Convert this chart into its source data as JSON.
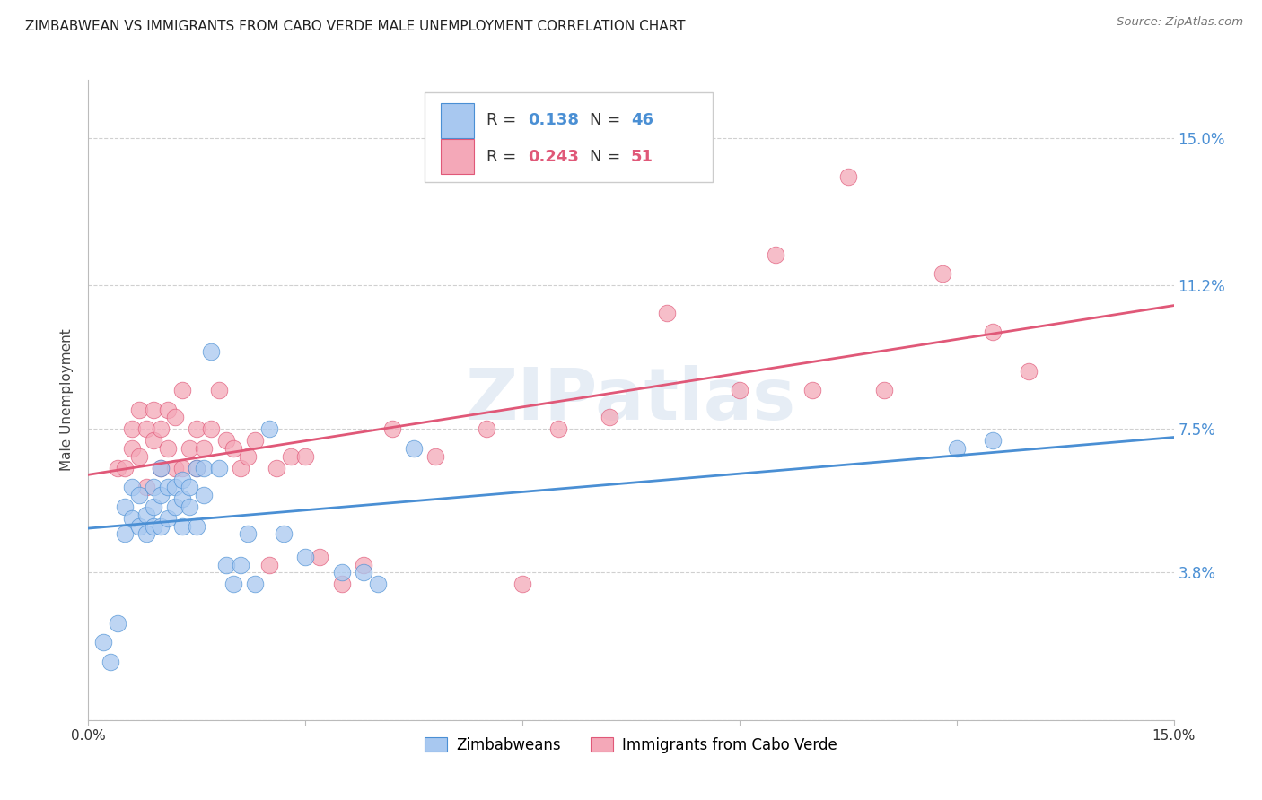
{
  "title": "ZIMBABWEAN VS IMMIGRANTS FROM CABO VERDE MALE UNEMPLOYMENT CORRELATION CHART",
  "source": "Source: ZipAtlas.com",
  "ylabel": "Male Unemployment",
  "yticks": [
    0.0,
    0.038,
    0.075,
    0.112,
    0.15
  ],
  "ytick_labels": [
    "",
    "3.8%",
    "7.5%",
    "11.2%",
    "15.0%"
  ],
  "xlim": [
    0.0,
    0.15
  ],
  "ylim": [
    0.0,
    0.165
  ],
  "background_color": "#ffffff",
  "grid_color": "#d0d0d0",
  "watermark": "ZIPatlas",
  "series1_color": "#a8c8f0",
  "series2_color": "#f4a8b8",
  "line1_color": "#4a8fd4",
  "line2_color": "#e05878",
  "series1_label": "Zimbabweans",
  "series2_label": "Immigrants from Cabo Verde",
  "zimbabwean_x": [
    0.002,
    0.003,
    0.004,
    0.005,
    0.005,
    0.006,
    0.006,
    0.007,
    0.007,
    0.008,
    0.008,
    0.009,
    0.009,
    0.009,
    0.01,
    0.01,
    0.01,
    0.011,
    0.011,
    0.012,
    0.012,
    0.013,
    0.013,
    0.013,
    0.014,
    0.014,
    0.015,
    0.015,
    0.016,
    0.016,
    0.017,
    0.018,
    0.019,
    0.02,
    0.021,
    0.022,
    0.023,
    0.025,
    0.027,
    0.03,
    0.035,
    0.038,
    0.04,
    0.045,
    0.12,
    0.125
  ],
  "zimbabwean_y": [
    0.02,
    0.015,
    0.025,
    0.048,
    0.055,
    0.052,
    0.06,
    0.05,
    0.058,
    0.048,
    0.053,
    0.05,
    0.055,
    0.06,
    0.05,
    0.058,
    0.065,
    0.052,
    0.06,
    0.055,
    0.06,
    0.05,
    0.057,
    0.062,
    0.055,
    0.06,
    0.05,
    0.065,
    0.058,
    0.065,
    0.095,
    0.065,
    0.04,
    0.035,
    0.04,
    0.048,
    0.035,
    0.075,
    0.048,
    0.042,
    0.038,
    0.038,
    0.035,
    0.07,
    0.07,
    0.072
  ],
  "caboverde_x": [
    0.004,
    0.005,
    0.006,
    0.006,
    0.007,
    0.007,
    0.008,
    0.008,
    0.009,
    0.009,
    0.01,
    0.01,
    0.011,
    0.011,
    0.012,
    0.012,
    0.013,
    0.013,
    0.014,
    0.015,
    0.015,
    0.016,
    0.017,
    0.018,
    0.019,
    0.02,
    0.021,
    0.022,
    0.023,
    0.025,
    0.026,
    0.028,
    0.03,
    0.032,
    0.035,
    0.038,
    0.042,
    0.048,
    0.055,
    0.06,
    0.065,
    0.072,
    0.08,
    0.09,
    0.095,
    0.1,
    0.105,
    0.11,
    0.118,
    0.125,
    0.13
  ],
  "caboverde_y": [
    0.065,
    0.065,
    0.07,
    0.075,
    0.068,
    0.08,
    0.06,
    0.075,
    0.072,
    0.08,
    0.065,
    0.075,
    0.07,
    0.08,
    0.065,
    0.078,
    0.065,
    0.085,
    0.07,
    0.065,
    0.075,
    0.07,
    0.075,
    0.085,
    0.072,
    0.07,
    0.065,
    0.068,
    0.072,
    0.04,
    0.065,
    0.068,
    0.068,
    0.042,
    0.035,
    0.04,
    0.075,
    0.068,
    0.075,
    0.035,
    0.075,
    0.078,
    0.105,
    0.085,
    0.12,
    0.085,
    0.14,
    0.085,
    0.115,
    0.1,
    0.09
  ]
}
